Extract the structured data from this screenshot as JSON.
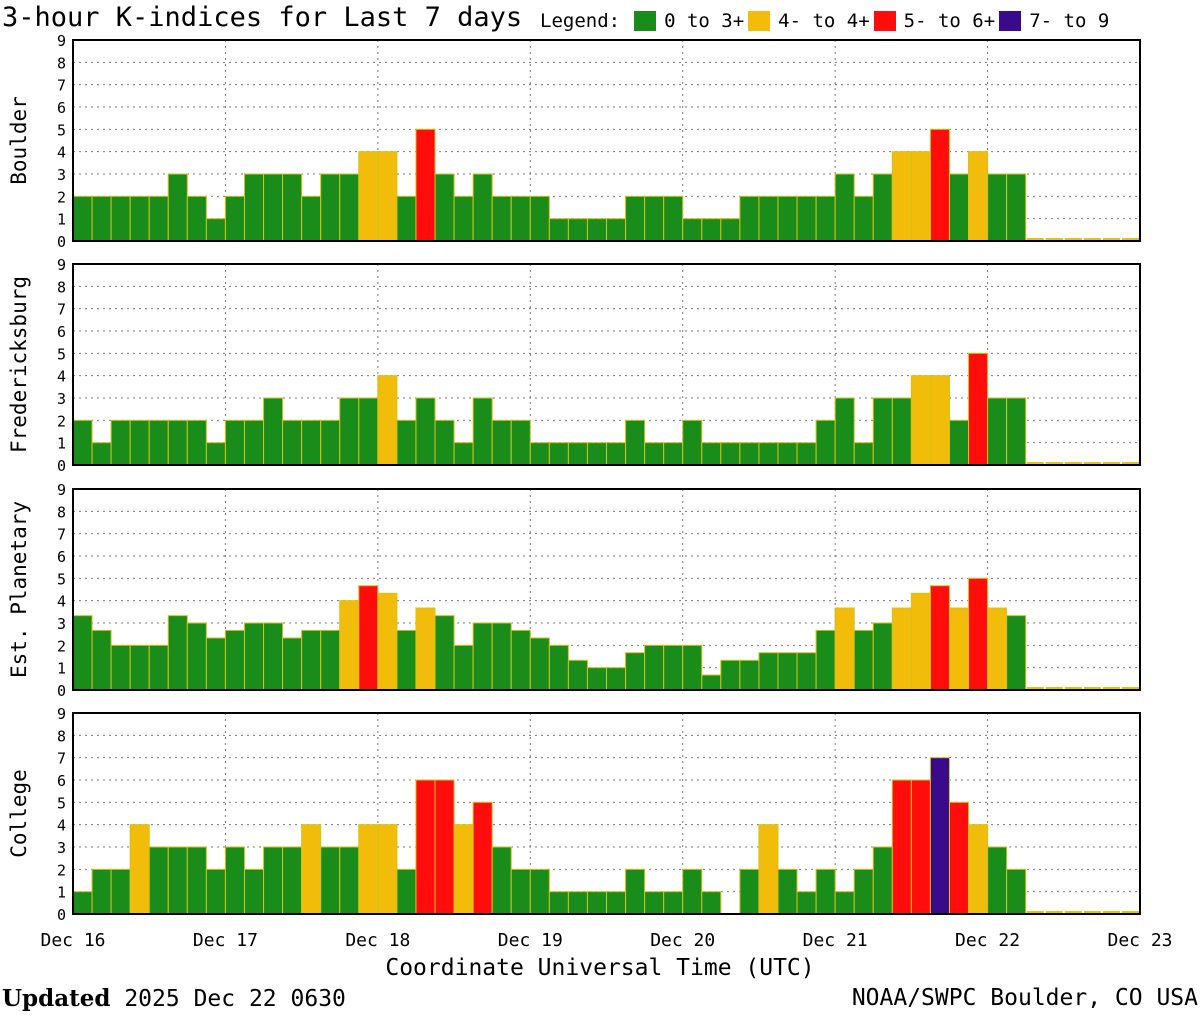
{
  "header": {
    "title": "3-hour K-indices for Last 7 days",
    "legend_label": "Legend:",
    "legend": [
      {
        "label": "0 to 3+",
        "color": "#1a8c1a"
      },
      {
        "label": "4- to 4+",
        "color": "#f2bd0a"
      },
      {
        "label": "5- to 6+",
        "color": "#ff0d0d"
      },
      {
        "label": "7- to 9",
        "color": "#3a0a8c"
      }
    ]
  },
  "footer": {
    "updated_label": "Updated",
    "updated_value": "2025 Dec 22 0630",
    "source": "NOAA/SWPC Boulder, CO USA"
  },
  "chart_data": {
    "type": "bar",
    "xlabel": "Coordinate Universal Time (UTC)",
    "x_tick_labels": [
      "Dec 16",
      "Dec 17",
      "Dec 18",
      "Dec 19",
      "Dec 20",
      "Dec 21",
      "Dec 22",
      "Dec 23"
    ],
    "y_ticks": [
      0,
      1,
      2,
      3,
      4,
      5,
      6,
      7,
      8,
      9
    ],
    "ylim": [
      0,
      9
    ],
    "grid": true,
    "intervals_per_day": 8,
    "total_intervals": 56,
    "observed_intervals": 50,
    "colors": {
      "quiet": "#1a8c1a",
      "active": "#f2bd0a",
      "storm": "#ff0d0d",
      "severe": "#3a0a8c"
    },
    "panels": [
      {
        "name": "Boulder",
        "values": [
          2,
          2,
          2,
          2,
          2,
          3,
          2,
          1,
          2,
          3,
          3,
          3,
          2,
          3,
          3,
          4,
          4,
          2,
          5,
          3,
          2,
          3,
          2,
          2,
          2,
          1,
          1,
          1,
          1,
          2,
          2,
          2,
          1,
          1,
          1,
          2,
          2,
          2,
          2,
          2,
          3,
          2,
          3,
          4,
          4,
          5,
          3,
          4,
          3,
          3
        ]
      },
      {
        "name": "Fredericksburg",
        "values": [
          2,
          1,
          2,
          2,
          2,
          2,
          2,
          1,
          2,
          2,
          3,
          2,
          2,
          2,
          3,
          3,
          4,
          2,
          3,
          2,
          1,
          3,
          2,
          2,
          1,
          1,
          1,
          1,
          1,
          2,
          1,
          1,
          2,
          1,
          1,
          1,
          1,
          1,
          1,
          2,
          3,
          1,
          3,
          3,
          4,
          4,
          2,
          5,
          3,
          3
        ]
      },
      {
        "name": "Est. Planetary",
        "values": [
          3.33,
          2.67,
          2,
          2,
          2,
          3.33,
          3,
          2.33,
          2.67,
          3,
          3,
          2.33,
          2.67,
          2.67,
          4,
          4.67,
          4.33,
          2.67,
          3.67,
          3.33,
          2,
          3,
          3,
          2.67,
          2.33,
          2,
          1.33,
          1,
          1,
          1.67,
          2,
          2,
          2,
          0.67,
          1.33,
          1.33,
          1.67,
          1.67,
          1.67,
          2.67,
          3.67,
          2.67,
          3,
          3.67,
          4.33,
          4.67,
          3.67,
          5,
          3.67,
          3.33
        ]
      },
      {
        "name": "College",
        "values": [
          1,
          2,
          2,
          4,
          3,
          3,
          3,
          2,
          3,
          2,
          3,
          3,
          4,
          3,
          3,
          4,
          4,
          2,
          6,
          6,
          4,
          5,
          3,
          2,
          2,
          1,
          1,
          1,
          1,
          2,
          1,
          1,
          2,
          1,
          0,
          2,
          4,
          2,
          1,
          2,
          1,
          2,
          3,
          6,
          6,
          7,
          5,
          4,
          3,
          2
        ]
      }
    ]
  }
}
